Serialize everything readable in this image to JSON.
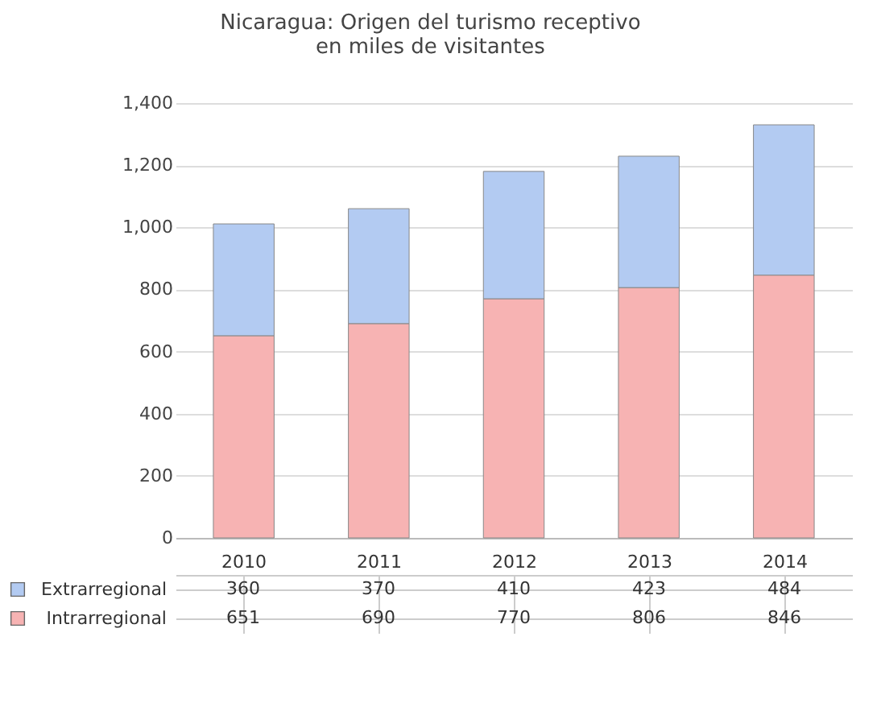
{
  "chart_data": {
    "type": "bar",
    "title": "Nicaragua: Origen del turismo receptivo\nen miles de visitantes",
    "categories": [
      "2010",
      "2011",
      "2012",
      "2013",
      "2014"
    ],
    "series": [
      {
        "name": "Intrarregional",
        "color": "#f7b3b3",
        "values": [
          651,
          690,
          770,
          806,
          846
        ]
      },
      {
        "name": "Extrarregional",
        "color": "#b3cbf2",
        "values": [
          360,
          370,
          410,
          423,
          484
        ]
      }
    ],
    "stacked": true,
    "ylim": [
      0,
      1400
    ],
    "yticks": [
      0,
      200,
      400,
      600,
      800,
      {
        "value": 1000,
        "label": "1,000"
      },
      {
        "value": 1200,
        "label": "1,200"
      },
      {
        "value": 1400,
        "label": "1,400"
      }
    ],
    "grid": "y",
    "data_labels": true,
    "legend": "bottom"
  }
}
